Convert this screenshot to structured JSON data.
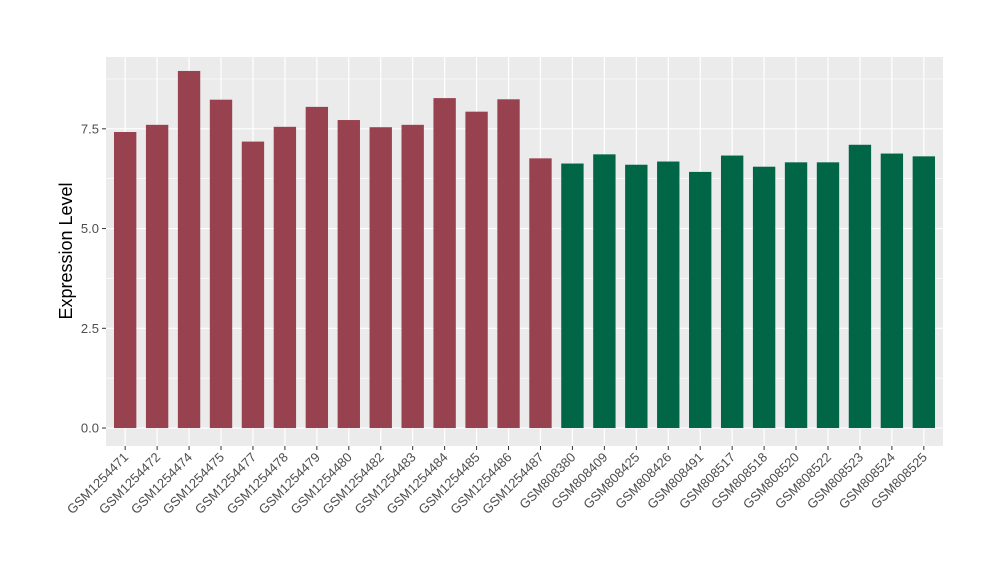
{
  "chart_data": {
    "type": "bar",
    "title": "",
    "xlabel": "",
    "ylabel": "Expression Level",
    "ylim": [
      -0.45,
      9.3
    ],
    "yticks": [
      0.0,
      2.5,
      5.0,
      7.5
    ],
    "ytick_labels": [
      "0.0",
      "2.5",
      "5.0",
      "7.5"
    ],
    "grid": true,
    "legend": "none",
    "categories": [
      "GSM1254471",
      "GSM1254472",
      "GSM1254474",
      "GSM1254475",
      "GSM1254477",
      "GSM1254478",
      "GSM1254479",
      "GSM1254480",
      "GSM1254482",
      "GSM1254483",
      "GSM1254484",
      "GSM1254485",
      "GSM1254486",
      "GSM1254487",
      "GSM808380",
      "GSM808409",
      "GSM808425",
      "GSM808426",
      "GSM808491",
      "GSM808517",
      "GSM808518",
      "GSM808520",
      "GSM808522",
      "GSM808523",
      "GSM808524",
      "GSM808525"
    ],
    "values": [
      7.42,
      7.6,
      8.95,
      8.23,
      7.18,
      7.55,
      8.05,
      7.72,
      7.54,
      7.6,
      8.27,
      7.93,
      8.24,
      6.76,
      6.63,
      6.86,
      6.6,
      6.68,
      6.42,
      6.83,
      6.55,
      6.66,
      6.66,
      7.1,
      6.88,
      6.81
    ],
    "bar_colors": [
      "#99424f",
      "#99424f",
      "#99424f",
      "#99424f",
      "#99424f",
      "#99424f",
      "#99424f",
      "#99424f",
      "#99424f",
      "#99424f",
      "#99424f",
      "#99424f",
      "#99424f",
      "#99424f",
      "#006646",
      "#006646",
      "#006646",
      "#006646",
      "#006646",
      "#006646",
      "#006646",
      "#006646",
      "#006646",
      "#006646",
      "#006646",
      "#006646"
    ],
    "panel_color": "#ebebeb",
    "grid_color": "#ffffff"
  }
}
